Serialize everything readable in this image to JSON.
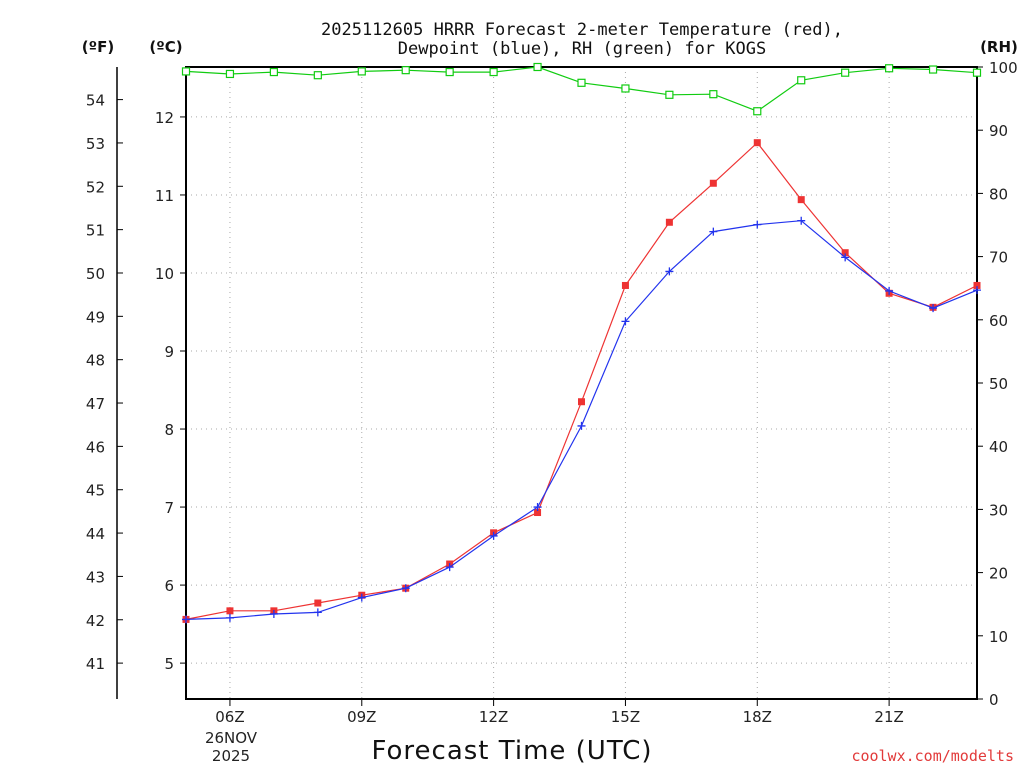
{
  "chart_data": {
    "type": "line",
    "title_line1": "2025112605 HRRR Forecast 2-meter Temperature (red),",
    "title_line2": "Dewpoint (blue), RH (green) for KOGS",
    "xlabel": "Forecast Time (UTC)",
    "credit": "coolwx.com/modelts",
    "units": {
      "fahrenheit": "(ºF)",
      "celsius": "(ºC)",
      "rh": "(RH)"
    },
    "x": [
      5,
      6,
      7,
      8,
      9,
      10,
      11,
      12,
      13,
      14,
      15,
      16,
      17,
      18,
      19,
      20,
      21,
      22,
      23
    ],
    "xlim": [
      5,
      23
    ],
    "x_ticks": [
      {
        "x": 6,
        "label": "06Z"
      },
      {
        "x": 9,
        "label": "09Z"
      },
      {
        "x": 12,
        "label": "12Z"
      },
      {
        "x": 15,
        "label": "15Z"
      },
      {
        "x": 18,
        "label": "18Z"
      },
      {
        "x": 21,
        "label": "21Z"
      }
    ],
    "date_line1": "26NOV",
    "date_line2": "2025",
    "celsius_lim": [
      4.54,
      12.64
    ],
    "celsius_ticks": [
      "5",
      "6",
      "7",
      "8",
      "9",
      "10",
      "11",
      "12"
    ],
    "fahrenheit_ticks": [
      "41",
      "42",
      "43",
      "44",
      "45",
      "46",
      "47",
      "48",
      "49",
      "50",
      "51",
      "52",
      "53",
      "54"
    ],
    "rh_lim": [
      0,
      100
    ],
    "rh_ticks": [
      "0",
      "10",
      "20",
      "30",
      "40",
      "50",
      "60",
      "70",
      "80",
      "90",
      "100"
    ],
    "colors": {
      "temperature": "#ee3333",
      "dewpoint": "#2233ee",
      "rh": "#11cc11",
      "credit": "#e23a3a",
      "grid": "#aaaaaa"
    },
    "series": [
      {
        "name": "Temperature",
        "units": "C",
        "values": [
          5.56,
          5.67,
          5.67,
          5.77,
          5.87,
          5.96,
          6.27,
          6.67,
          6.93,
          8.35,
          9.84,
          10.65,
          11.15,
          11.67,
          10.94,
          10.26,
          9.74,
          9.56,
          9.84
        ]
      },
      {
        "name": "Dewpoint",
        "units": "C",
        "values": [
          5.56,
          5.58,
          5.63,
          5.65,
          5.84,
          5.96,
          6.23,
          6.63,
          7.0,
          8.04,
          9.38,
          10.02,
          10.53,
          10.62,
          10.67,
          10.2,
          9.77,
          9.55,
          9.78
        ]
      },
      {
        "name": "RH",
        "units": "%",
        "values": [
          99.3,
          98.9,
          99.2,
          98.7,
          99.3,
          99.5,
          99.2,
          99.2,
          100,
          97.5,
          96.6,
          95.6,
          95.7,
          93.0,
          97.9,
          99.1,
          99.8,
          99.6,
          99.1
        ]
      }
    ]
  }
}
